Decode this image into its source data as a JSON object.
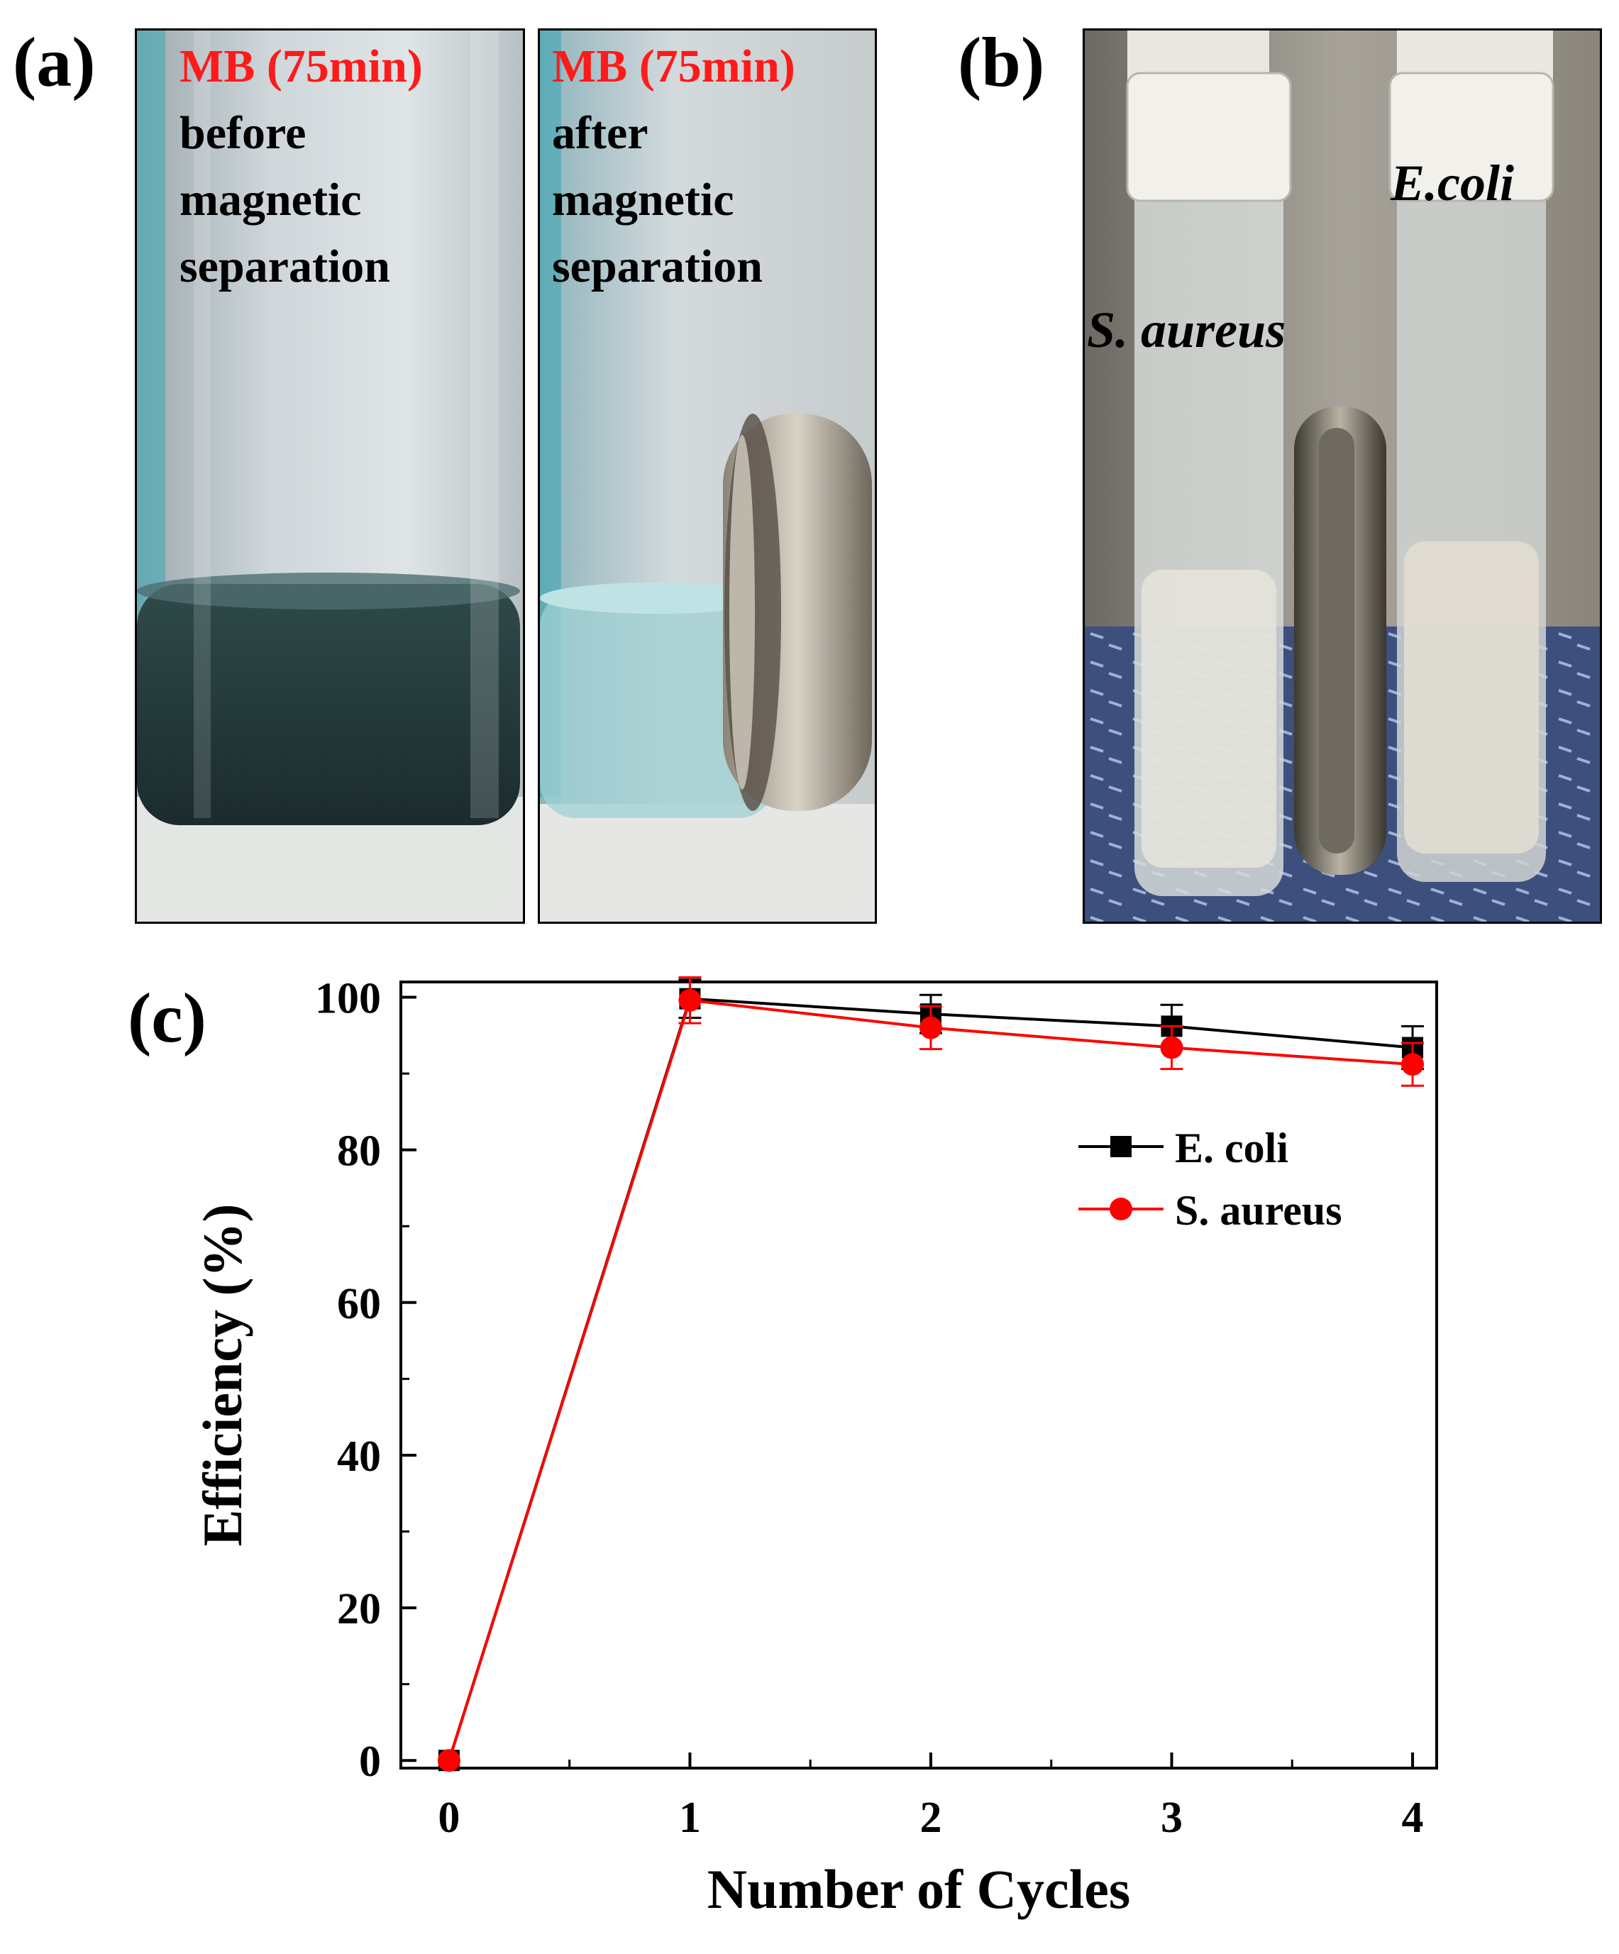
{
  "panels": {
    "a": {
      "label": "(a)",
      "left": {
        "heading": "MB (75min)",
        "line1": "before",
        "line2": "magnetic",
        "line3": "separation"
      },
      "right": {
        "heading": "MB (75min)",
        "line1": "after",
        "line2": "magnetic",
        "line3": "separation"
      }
    },
    "b": {
      "label": "(b)",
      "tube_left": "S. aureus",
      "tube_right": "E.coli"
    },
    "c": {
      "label": "(c)"
    }
  },
  "colors": {
    "heading_red": "#ff1a1a",
    "ecoli": "#000000",
    "saureus": "#ff0000"
  },
  "chart_data": {
    "type": "line",
    "xlabel": "Number of Cycles",
    "ylabel": "Efficiency (%)",
    "xlim": [
      -0.2,
      4.1
    ],
    "ylim": [
      -1,
      102
    ],
    "xticks": [
      0,
      1,
      2,
      3,
      4
    ],
    "yticks": [
      0,
      20,
      40,
      60,
      80,
      100
    ],
    "grid": false,
    "legend": "right, upper-middle",
    "series": [
      {
        "name": "E. coli",
        "color": "#000000",
        "marker": "square",
        "x": [
          0,
          1,
          2,
          3,
          4
        ],
        "y": [
          0,
          99.8,
          97.8,
          96.2,
          93.4
        ],
        "err": [
          0,
          2.5,
          2.5,
          2.8,
          2.8
        ]
      },
      {
        "name": "S. aureus",
        "color": "#ff0000",
        "marker": "circle",
        "x": [
          0,
          1,
          2,
          3,
          4
        ],
        "y": [
          0,
          99.6,
          96.0,
          93.4,
          91.2
        ],
        "err": [
          0,
          3.0,
          2.8,
          2.8,
          2.8
        ]
      }
    ]
  }
}
